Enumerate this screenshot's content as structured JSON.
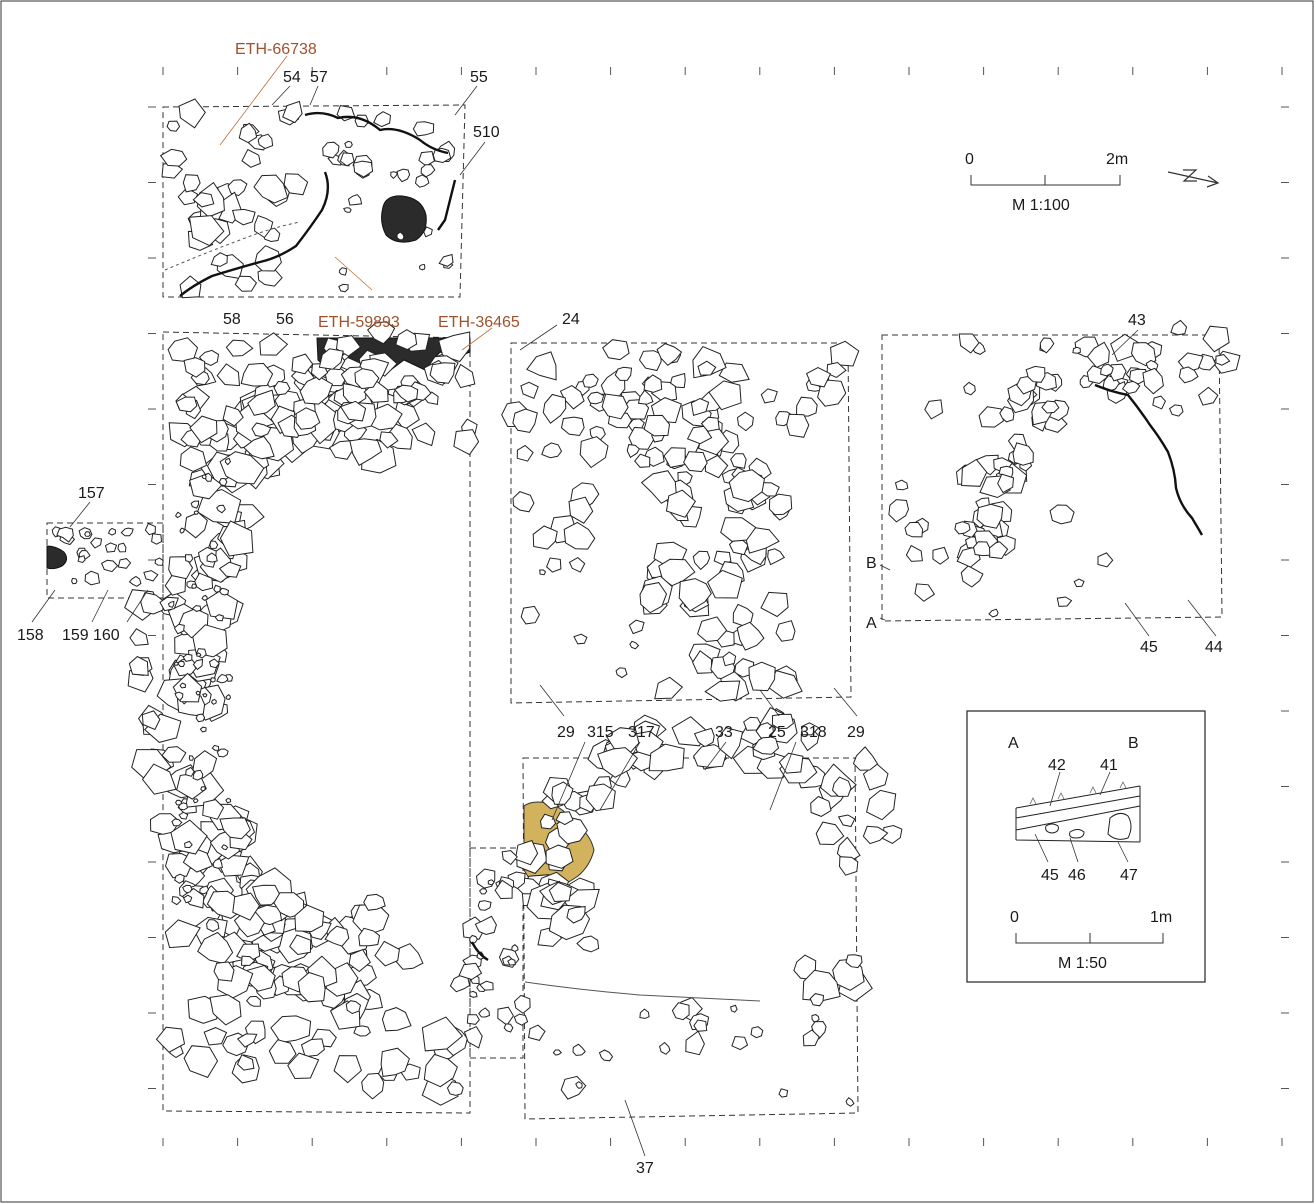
{
  "plan": {
    "feature_labels": {
      "l54": "54",
      "l57": "57",
      "l55": "55",
      "l510": "510",
      "l58": "58",
      "l56": "56",
      "l24": "24",
      "l43": "43",
      "l157": "157",
      "l158": "158",
      "l159": "159",
      "l160": "160",
      "lB": "B",
      "lA": "A",
      "l45": "45",
      "l44": "44",
      "l29a": "29",
      "l315": "315",
      "l317": "317",
      "l33": "33",
      "l25": "25",
      "l318": "318",
      "l29b": "29",
      "l37": "37"
    },
    "dating_samples": {
      "s1": "ETH-66738",
      "s2": "ETH-59893",
      "s3": "ETH-36465"
    },
    "colors": {
      "dating_label": "#a0522d",
      "dark_feature": "#2b2b2b",
      "highlight_feature": "#d2b25c"
    }
  },
  "scale_main": {
    "zero": "0",
    "max": "2m",
    "ratio": "M 1:100"
  },
  "north_arrow": {
    "icon": "north-arrow-icon"
  },
  "section_inset": {
    "end_a": "A",
    "end_b": "B",
    "layers": {
      "l42": "42",
      "l41": "41",
      "l45": "45",
      "l46": "46",
      "l47": "47"
    },
    "scale": {
      "zero": "0",
      "max": "1m",
      "ratio": "M 1:50"
    }
  }
}
